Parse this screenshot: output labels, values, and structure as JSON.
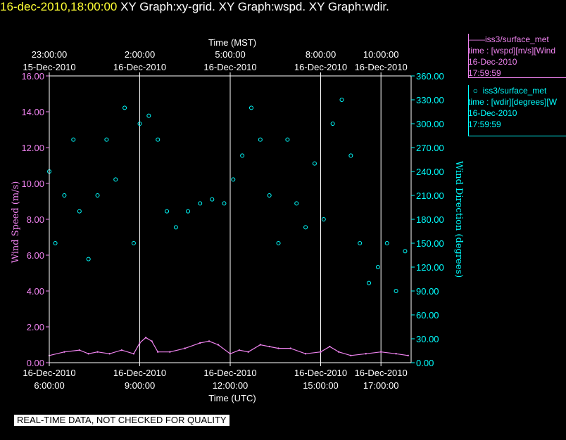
{
  "header": {
    "timestamp": "16-dec-2010,18:00:00",
    "graphs": "XY Graph:xy-grid.  XY Graph:wspd.  XY Graph:wdir."
  },
  "legend": {
    "wspd": {
      "name": "iss3/surface_met",
      "line1": "time : [wspd][m/s][Wind",
      "date": "16-Dec-2010",
      "time": "17:59:59"
    },
    "wdir": {
      "name": "iss3/surface_met",
      "line1": "time : [wdir][degrees][W",
      "date": "16-Dec-2010",
      "time": "17:59:59"
    }
  },
  "footer": {
    "quality_notice": "REAL-TIME DATA, NOT CHECKED FOR QUALITY"
  },
  "chart_data": {
    "type": "scatter",
    "title": "",
    "colors": {
      "wspd": "#ee82ee",
      "wdir": "#00ffff",
      "grid": "#ffffff",
      "background": "#000000"
    },
    "top_axis": {
      "label": "Time (MST)",
      "ticks": [
        {
          "x": 6.0,
          "time": "23:00:00",
          "date": "15-Dec-2010"
        },
        {
          "x": 9.0,
          "time": "2:00:00",
          "date": "16-Dec-2010"
        },
        {
          "x": 12.0,
          "time": "5:00:00",
          "date": "16-Dec-2010"
        },
        {
          "x": 15.0,
          "time": "8:00:00",
          "date": "16-Dec-2010"
        },
        {
          "x": 17.0,
          "time": "10:00:00",
          "date": "16-Dec-2010"
        }
      ]
    },
    "bottom_axis": {
      "label": "Time (UTC)",
      "ticks": [
        {
          "x": 6.0,
          "date": "16-Dec-2010",
          "time": "6:00:00"
        },
        {
          "x": 9.0,
          "date": "16-Dec-2010",
          "time": "9:00:00"
        },
        {
          "x": 12.0,
          "date": "16-Dec-2010",
          "time": "12:00:00"
        },
        {
          "x": 15.0,
          "date": "16-Dec-2010",
          "time": "15:00:00"
        },
        {
          "x": 17.0,
          "date": "16-Dec-2010",
          "time": "17:00:00"
        }
      ]
    },
    "xlim": [
      6.0,
      18.0
    ],
    "left_axis": {
      "label": "Wind Speed (m/s)",
      "ylim": [
        0,
        16
      ],
      "ticks": [
        "0.00",
        "2.00",
        "4.00",
        "6.00",
        "8.00",
        "10.00",
        "12.00",
        "14.00",
        "16.00"
      ]
    },
    "right_axis": {
      "label": "Wind Direction (degrees)",
      "ylim": [
        0,
        360
      ],
      "ticks": [
        "0.00",
        "30.00",
        "60.00",
        "90.00",
        "120.00",
        "150.00",
        "180.00",
        "210.00",
        "240.00",
        "270.00",
        "300.00",
        "330.00",
        "360.00"
      ]
    },
    "grid": true,
    "series": [
      {
        "name": "iss3/surface_met wspd",
        "axis": "left",
        "style": "line",
        "x": [
          6.0,
          6.5,
          7.0,
          7.3,
          7.6,
          8.0,
          8.4,
          8.8,
          9.0,
          9.2,
          9.4,
          9.6,
          10.0,
          10.5,
          11.0,
          11.3,
          11.6,
          12.0,
          12.3,
          12.6,
          13.0,
          13.3,
          13.6,
          14.0,
          14.5,
          15.0,
          15.3,
          15.6,
          16.0,
          16.5,
          17.0,
          17.5,
          17.9
        ],
        "y": [
          0.4,
          0.6,
          0.7,
          0.5,
          0.6,
          0.5,
          0.7,
          0.5,
          1.1,
          1.4,
          1.2,
          0.6,
          0.6,
          0.8,
          1.1,
          1.2,
          1.0,
          0.5,
          0.7,
          0.6,
          1.0,
          0.9,
          0.8,
          0.8,
          0.5,
          0.6,
          0.9,
          0.6,
          0.4,
          0.5,
          0.6,
          0.5,
          0.4
        ]
      },
      {
        "name": "iss3/surface_met wdir",
        "axis": "right",
        "style": "points",
        "x": [
          6.0,
          6.2,
          6.5,
          6.8,
          7.0,
          7.3,
          7.6,
          7.9,
          8.2,
          8.5,
          8.8,
          9.0,
          9.3,
          9.6,
          9.9,
          10.2,
          10.6,
          11.0,
          11.4,
          11.8,
          12.1,
          12.4,
          12.7,
          13.0,
          13.3,
          13.6,
          13.9,
          14.2,
          14.5,
          14.8,
          15.1,
          15.4,
          15.7,
          16.0,
          16.3,
          16.6,
          16.9,
          17.2,
          17.5,
          17.8
        ],
        "y": [
          240,
          150,
          210,
          280,
          190,
          130,
          210,
          280,
          230,
          320,
          150,
          300,
          310,
          280,
          190,
          170,
          190,
          200,
          205,
          200,
          230,
          260,
          320,
          280,
          210,
          150,
          280,
          200,
          170,
          250,
          180,
          300,
          330,
          260,
          150,
          100,
          120,
          150,
          90,
          140
        ]
      }
    ]
  }
}
